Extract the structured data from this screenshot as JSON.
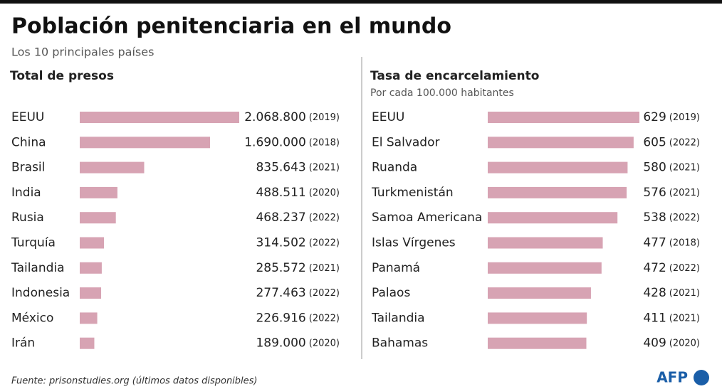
{
  "title": "Población penitenciaria en el mundo",
  "subtitle": "Los 10 principales países",
  "source": "Fuente: prisonstudies.org (últimos datos disponibles)",
  "logo": "AFP",
  "chart_data": [
    {
      "type": "bar",
      "orientation": "horizontal",
      "title": "Total de presos",
      "categories": [
        "EEUU",
        "China",
        "Brasil",
        "India",
        "Rusia",
        "Turquía",
        "Tailandia",
        "Indonesia",
        "México",
        "Irán"
      ],
      "values": [
        2068800,
        1690000,
        835643,
        488511,
        468237,
        314502,
        285572,
        277463,
        226916,
        189000
      ],
      "value_labels": [
        "2.068.800",
        "1.690.000",
        "835.643",
        "488.511",
        "468.237",
        "314.502",
        "285.572",
        "277.463",
        "226.916",
        "189.000"
      ],
      "years": [
        "(2019)",
        "(2018)",
        "(2021)",
        "(2020)",
        "(2022)",
        "(2022)",
        "(2021)",
        "(2022)",
        "(2022)",
        "(2020)"
      ],
      "color": "#d7a3b3"
    },
    {
      "type": "bar",
      "orientation": "horizontal",
      "title": "Tasa de encarcelamiento",
      "subtitle": "Por cada 100.000 habitantes",
      "categories": [
        "EEUU",
        "El Salvador",
        "Ruanda",
        "Turkmenistán",
        "Samoa Americana",
        "Islas Vírgenes",
        "Panamá",
        "Palaos",
        "Tailandia",
        "Bahamas"
      ],
      "values": [
        629,
        605,
        580,
        576,
        538,
        477,
        472,
        428,
        411,
        409
      ],
      "years": [
        "(2019)",
        "(2022)",
        "(2021)",
        "(2021)",
        "(2022)",
        "(2018)",
        "(2022)",
        "(2021)",
        "(2021)",
        "(2020)"
      ],
      "color": "#d7a3b3"
    }
  ]
}
